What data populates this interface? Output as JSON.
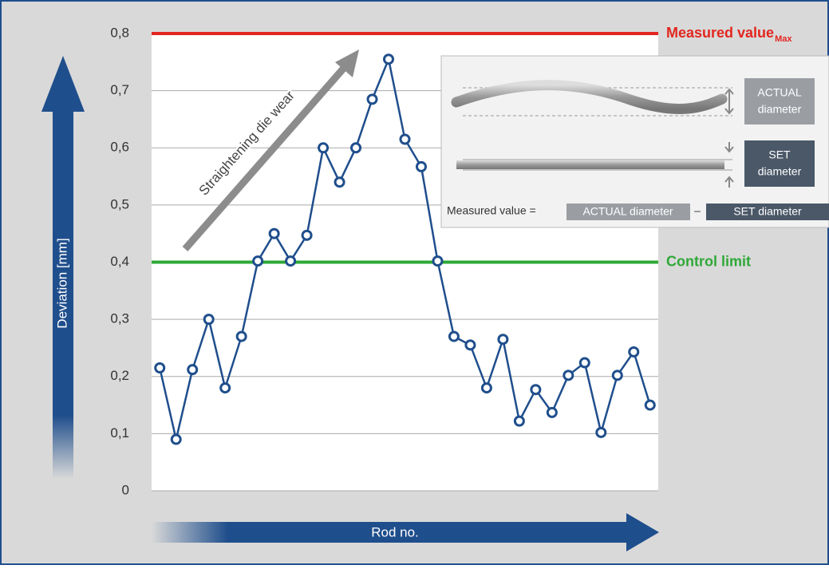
{
  "chart_data": {
    "type": "line",
    "y_label": "Deviation [mm]",
    "x_label": "Rod no.",
    "annotation": "Straightening die wear",
    "categories": [
      null,
      null,
      null,
      null,
      null,
      null,
      null,
      null,
      null,
      null,
      null,
      null,
      null,
      null,
      null,
      null,
      null,
      null,
      null,
      null,
      null,
      null,
      null,
      null,
      null,
      null,
      null,
      null,
      null,
      null,
      null
    ],
    "series": [
      {
        "color": "#1f4e8c",
        "values": [
          0.215,
          0.09,
          0.212,
          0.3,
          0.18,
          0.27,
          0.402,
          0.45,
          0.402,
          0.447,
          0.6,
          0.54,
          0.6,
          0.685,
          0.755,
          0.615,
          0.567,
          0.402,
          0.27,
          0.255,
          0.18,
          0.265,
          0.122,
          0.177,
          0.137,
          0.202,
          0.224,
          0.102,
          0.202,
          0.243,
          0.15
        ]
      }
    ],
    "ylim": [
      0,
      0.8
    ],
    "yticks": [
      0,
      {
        "value": 0.1,
        "label": "0,1"
      },
      {
        "value": 0.2,
        "label": "0,2"
      },
      {
        "value": 0.3,
        "label": "0,3"
      },
      {
        "value": 0.4,
        "label": "0,4"
      },
      {
        "value": 0.5,
        "label": "0,5"
      },
      {
        "value": 0.6,
        "label": "0,6"
      },
      {
        "value": 0.7,
        "label": "0,7"
      },
      {
        "value": 0.8,
        "label": "0,8"
      }
    ],
    "grid": true,
    "reference_lines": [
      {
        "value": 0.8,
        "label": "Measured value",
        "subscript": "Max",
        "color": "#e3261f"
      },
      {
        "value": 0.4,
        "label": "Control limit",
        "color": "#2ea836"
      }
    ]
  },
  "inset": {
    "actual_box": [
      "ACTUAL",
      "diameter"
    ],
    "set_box": [
      "SET",
      "diameter"
    ],
    "formula": {
      "left": "Measured value =",
      "actual": "ACTUAL diameter",
      "minus": "–",
      "set": "SET diameter"
    }
  }
}
